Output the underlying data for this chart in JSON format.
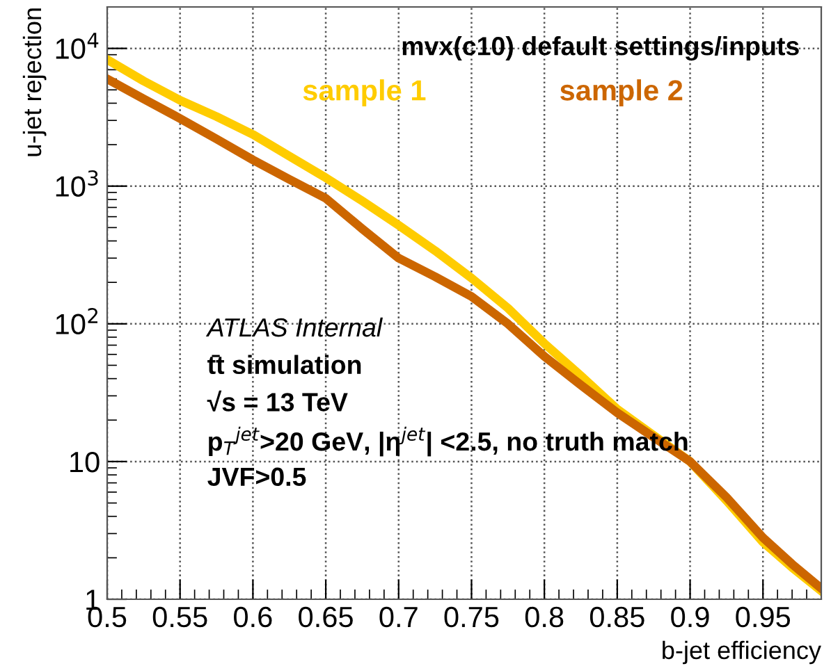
{
  "chart_data": {
    "type": "line",
    "xlabel": "b-jet efficiency",
    "ylabel": "u-jet rejection",
    "x": [
      0.5,
      0.525,
      0.55,
      0.575,
      0.6,
      0.625,
      0.65,
      0.675,
      0.7,
      0.725,
      0.75,
      0.775,
      0.8,
      0.825,
      0.85,
      0.875,
      0.9,
      0.925,
      0.95,
      0.97,
      0.99
    ],
    "series": [
      {
        "name": "sample 1",
        "color": "#ffcc00",
        "values": [
          8300,
          5800,
          4200,
          3200,
          2370,
          1650,
          1150,
          780,
          520,
          340,
          215,
          130,
          72,
          42,
          24,
          15.5,
          10,
          5.2,
          2.6,
          1.7,
          1.15
        ]
      },
      {
        "name": "sample 2",
        "color": "#cc6600",
        "values": [
          6000,
          4300,
          3100,
          2200,
          1550,
          1120,
          815,
          490,
          300,
          220,
          158,
          100,
          58,
          36,
          22.6,
          15,
          10,
          5.5,
          2.8,
          1.8,
          1.2
        ]
      }
    ],
    "xlim": [
      0.5,
      0.99
    ],
    "ylim": [
      1,
      20000
    ],
    "log": "y",
    "xticks": [
      0.5,
      0.55,
      0.6,
      0.65,
      0.7,
      0.75,
      0.8,
      0.85,
      0.9,
      0.95
    ],
    "yticks": [
      1,
      10,
      {
        "value": 100,
        "label": "10$^{2}$"
      },
      {
        "value": 1000,
        "label": "10$^{3}$"
      },
      {
        "value": 10000,
        "label": "10$^{4}$"
      }
    ],
    "grid": true,
    "line_style": "solid",
    "marker": "none",
    "annotations": [
      "mvx(c10) default settings/inputs",
      "ATLAS Internal",
      "t̄t simulation",
      "√s = 13 TeV",
      "p$_{T}$$^{jet}$>20 GeV, |η$^{jet}$| <2.5, no truth match",
      "JVF>0.5"
    ]
  }
}
